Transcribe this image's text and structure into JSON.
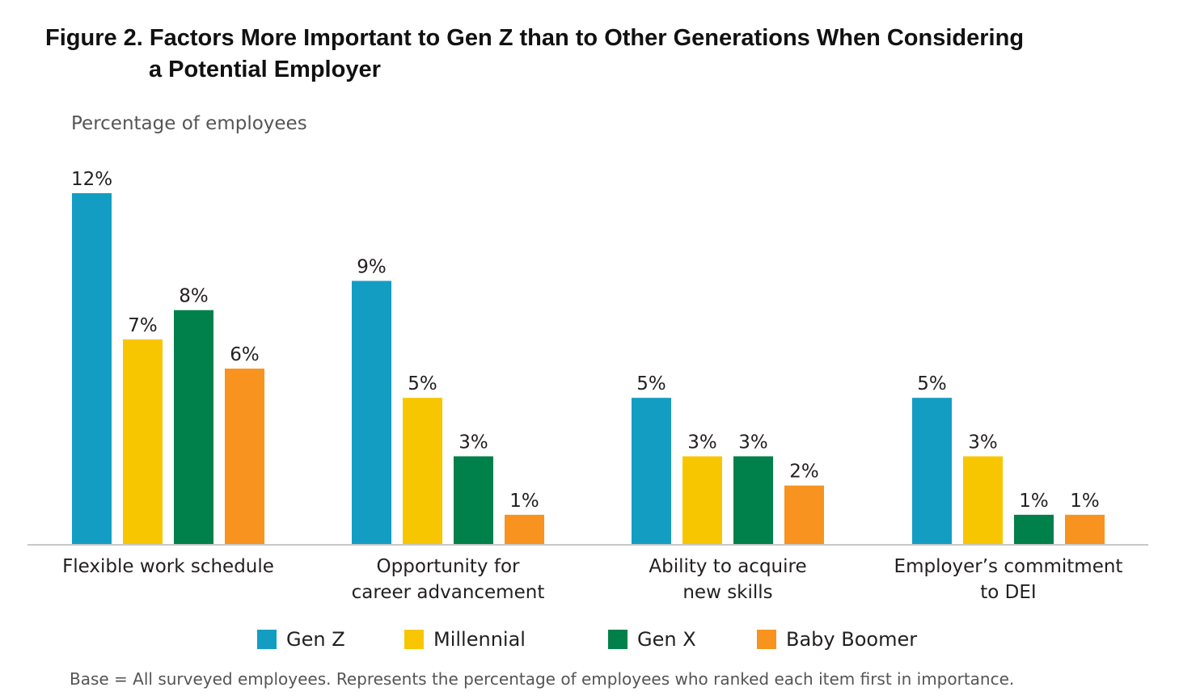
{
  "chart_data": {
    "type": "bar",
    "title_line1": "Figure 2. Factors More Important to Gen Z than to Other Generations When Considering",
    "title_line2": "a Potential Employer",
    "ylabel": "Percentage of employees",
    "ylim": [
      0,
      12
    ],
    "grid": false,
    "legend_position": "bottom",
    "categories": [
      [
        "Flexible work schedule"
      ],
      [
        "Opportunity for",
        "career advancement"
      ],
      [
        "Ability to acquire",
        "new skills"
      ],
      [
        "Employer’s commitment",
        "to DEI"
      ]
    ],
    "series": [
      {
        "name": "Gen Z",
        "color": "#139dc3",
        "values": [
          12,
          9,
          5,
          5
        ],
        "labels": [
          "12%",
          "9%",
          "5%",
          "5%"
        ]
      },
      {
        "name": "Millennial",
        "color": "#f8c600",
        "values": [
          7,
          5,
          3,
          3
        ],
        "labels": [
          "7%",
          "5%",
          "3%",
          "3%"
        ]
      },
      {
        "name": "Gen X",
        "color": "#00804a",
        "values": [
          8,
          3,
          3,
          1
        ],
        "labels": [
          "8%",
          "3%",
          "3%",
          "1%"
        ]
      },
      {
        "name": "Baby Boomer",
        "color": "#f7931e",
        "values": [
          6,
          1,
          2,
          1
        ],
        "labels": [
          "6%",
          "1%",
          "2%",
          "1%"
        ]
      }
    ],
    "footnote": "Base = All surveyed employees. Represents the percentage of employees who ranked each item first in importance."
  }
}
